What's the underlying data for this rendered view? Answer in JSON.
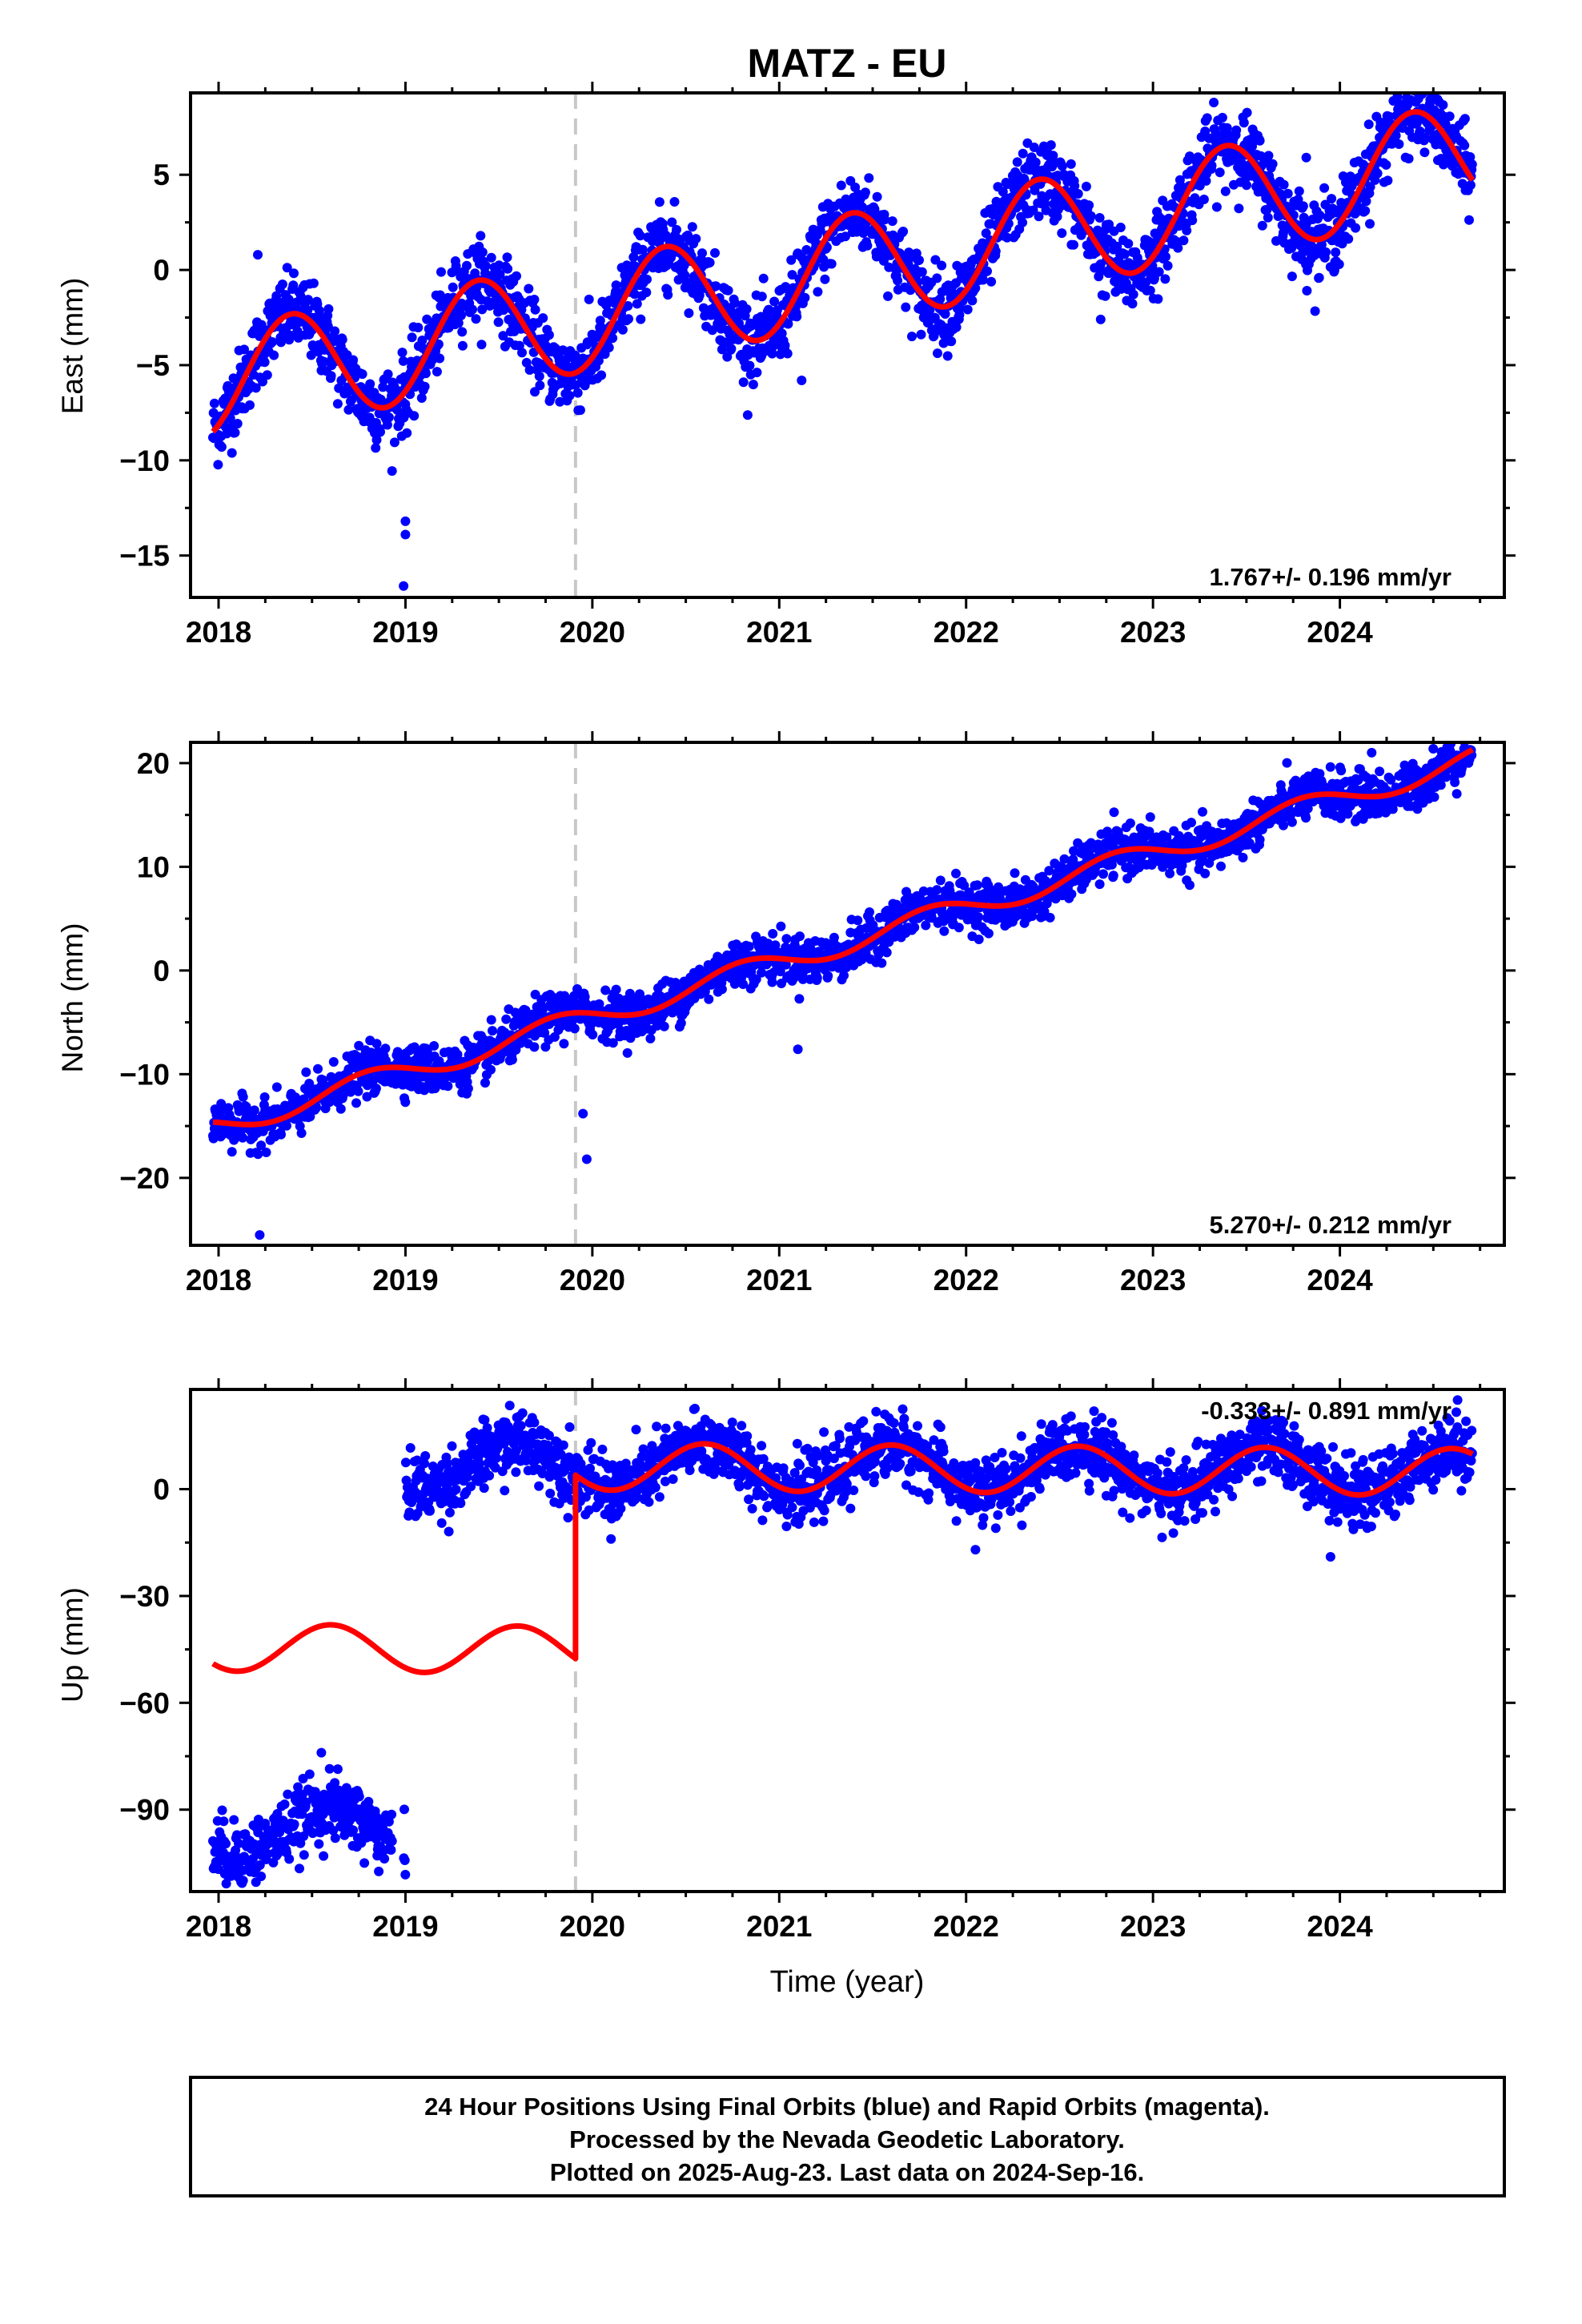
{
  "title": "MATZ - EU",
  "x_axis_title": "Time (year)",
  "x_ticks": [
    "2018",
    "2019",
    "2020",
    "2021",
    "2022",
    "2023",
    "2024"
  ],
  "footer": {
    "line1": "24 Hour Positions Using Final Orbits (blue) and Rapid Orbits (magenta).",
    "line2": "Processed by the Nevada Geodetic Laboratory.",
    "line3": "Plotted on 2025-Aug-23. Last data on 2024-Sep-16."
  },
  "colors": {
    "points": "#0000ff",
    "fit": "#ff0000",
    "event_line": "#c8c8c8",
    "frame": "#000000"
  },
  "chart_data": [
    {
      "type": "scatter",
      "name": "east",
      "ylabel": "East (mm)",
      "xlim": [
        2017.85,
        2024.88
      ],
      "ylim": [
        -17.2,
        9.3
      ],
      "yticks": [
        5,
        0,
        -5,
        -10,
        -15
      ],
      "ytick_labels": [
        "5",
        "0",
        "−10",
        "−15"
      ],
      "ytick_labels_full": [
        "5",
        "0",
        "−5",
        "−10",
        "−15"
      ],
      "rate_label": "1.767+/- 0.196 mm/yr",
      "event_line_x": 2019.91,
      "data_start": 2017.97,
      "data_end": 2024.71,
      "gaps": [],
      "fit": {
        "offset": -5.9,
        "rate": 1.767,
        "amplitude": 2.9,
        "phase_peak": 0.39,
        "step_at": null,
        "step": 0
      },
      "noise": 1.0,
      "outliers": [
        [
          2018.21,
          0.8
        ],
        [
          2019.0,
          -13.2
        ],
        [
          2019.0,
          -13.9
        ],
        [
          2018.99,
          -16.6
        ],
        [
          2021.12,
          -5.8
        ],
        [
          2022.72,
          -2.6
        ],
        [
          2023.82,
          5.9
        ]
      ]
    },
    {
      "type": "scatter",
      "name": "north",
      "ylabel": "North (mm)",
      "xlim": [
        2017.85,
        2024.88
      ],
      "ylim": [
        -26.5,
        22.0
      ],
      "yticks": [
        20,
        10,
        0,
        -10,
        -20
      ],
      "ytick_labels_full": [
        "20",
        "10",
        "0",
        "−10",
        "−20"
      ],
      "rate_label": "5.270+/- 0.212 mm/yr",
      "event_line_x": 2019.91,
      "data_start": 2017.97,
      "data_end": 2024.71,
      "gaps": [],
      "fit": {
        "offset": -15.0,
        "rate": 5.27,
        "amplitude": 1.1,
        "phase_peak": 0.8,
        "step_at": null,
        "step": 0
      },
      "noise": 1.1,
      "outliers": [
        [
          2018.22,
          -25.5
        ],
        [
          2019.95,
          -13.8
        ],
        [
          2019.97,
          -18.2
        ],
        [
          2021.1,
          -7.6
        ],
        [
          2024.17,
          21.0
        ]
      ]
    },
    {
      "type": "scatter",
      "name": "up",
      "ylabel": "Up (mm)",
      "xlim": [
        2017.85,
        2024.88
      ],
      "ylim": [
        -113,
        28
      ],
      "yticks": [
        0,
        -30,
        -60,
        -90
      ],
      "ytick_labels_full": [
        "0",
        "−30",
        "−60",
        "−90"
      ],
      "rate_label": "-0.333+/- 0.891 mm/yr",
      "event_line_x": 2019.91,
      "data_start": 2017.97,
      "data_end": 2024.71,
      "gaps": [
        [
          2018.93,
          2018.99
        ]
      ],
      "fit": {
        "offset": -44.5,
        "rate": -0.333,
        "amplitude": 6.6,
        "phase_peak": 0.6,
        "step_at": 2019.91,
        "step": 51.5
      },
      "noise": 4.5,
      "outliers": [
        [
          2018.55,
          -74
        ],
        [
          2018.78,
          -105
        ],
        [
          2019.87,
          -8
        ],
        [
          2020.1,
          -14
        ],
        [
          2022.05,
          -17
        ],
        [
          2023.95,
          -19
        ],
        [
          2024.63,
          25
        ]
      ]
    }
  ]
}
